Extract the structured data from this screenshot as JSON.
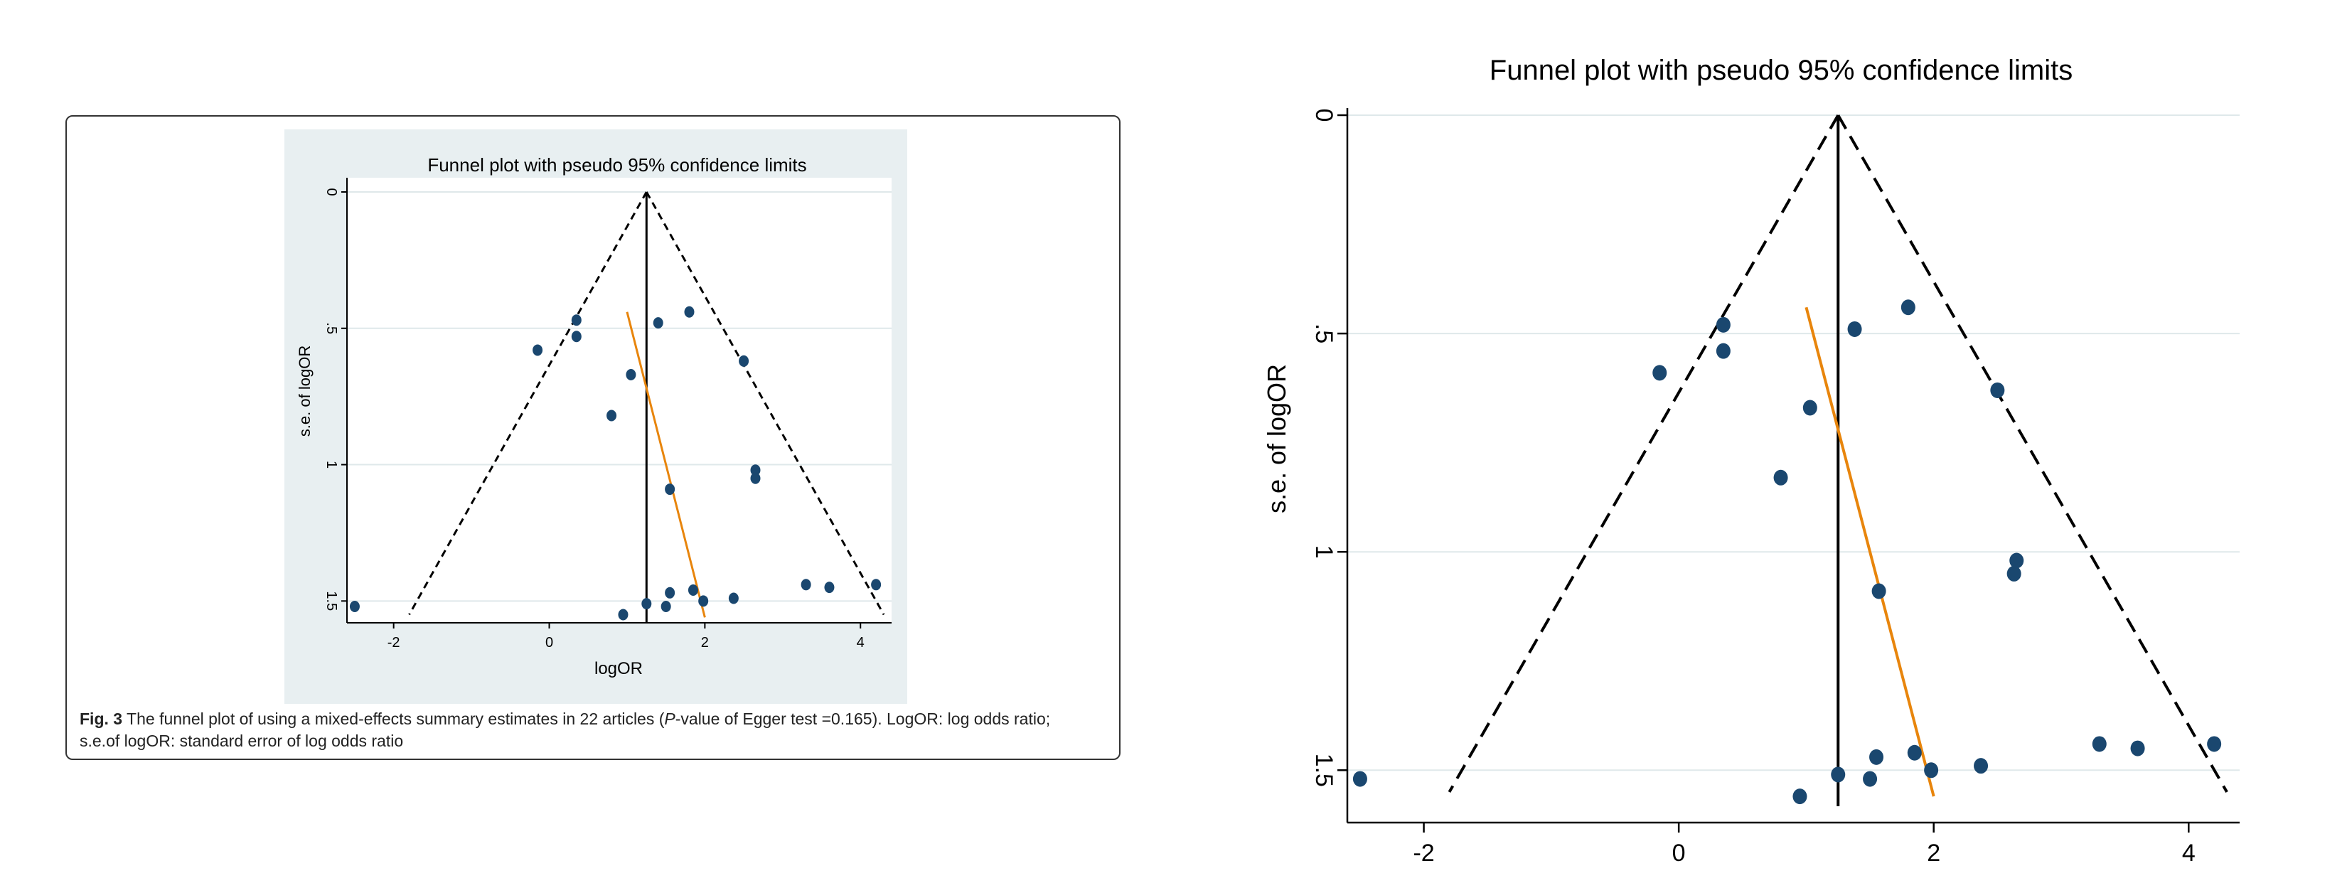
{
  "colors": {
    "panel_background": "#e8eff1",
    "plot_background": "#ffffff",
    "marker": "#1a476f",
    "regression_line": "#e8850c",
    "funnel_line": "#000000",
    "gridline": "#dfe8ea"
  },
  "figure_caption": {
    "label": "Fig. 3",
    "text_before_p": "The funnel plot of using a mixed-effects summary estimates in 22 articles (",
    "p_symbol": "P",
    "text_after_p": "-value of Egger test =0.165). LogOR: log odds ratio; s.e.of logOR: standard error of log odds ratio"
  },
  "chart_data": [
    {
      "type": "scatter",
      "title": "Funnel plot with pseudo 95% confidence limits",
      "xlabel": "logOR",
      "ylabel": "s.e. of logOR",
      "xlim": [
        -2.6,
        4.4
      ],
      "ylim": [
        0,
        1.58
      ],
      "y_reversed": true,
      "grid": true,
      "x_ticks": [
        -2,
        0,
        2,
        4
      ],
      "x_tick_labels": [
        "-2",
        "0",
        "2",
        "4"
      ],
      "y_ticks": [
        0,
        0.5,
        1,
        1.5
      ],
      "y_tick_labels": [
        "0",
        ".5",
        "1",
        "1.5"
      ],
      "pooled_estimate": 1.25,
      "pseudo_ci_lines": [
        {
          "name": "lower",
          "points": [
            [
              1.25,
              0
            ],
            [
              -1.8,
              1.55
            ]
          ]
        },
        {
          "name": "upper",
          "points": [
            [
              1.25,
              0
            ],
            [
              4.3,
              1.55
            ]
          ]
        }
      ],
      "egger_line": {
        "points": [
          [
            1.0,
            0.44
          ],
          [
            2.0,
            1.56
          ]
        ]
      },
      "points": [
        {
          "x": -2.5,
          "y": 1.52
        },
        {
          "x": -0.15,
          "y": 0.58
        },
        {
          "x": 0.35,
          "y": 0.47
        },
        {
          "x": 0.35,
          "y": 0.53
        },
        {
          "x": 1.05,
          "y": 0.67
        },
        {
          "x": 0.8,
          "y": 0.82
        },
        {
          "x": 1.4,
          "y": 0.48
        },
        {
          "x": 1.8,
          "y": 0.44
        },
        {
          "x": 2.5,
          "y": 0.62
        },
        {
          "x": 2.65,
          "y": 1.02
        },
        {
          "x": 2.65,
          "y": 1.05
        },
        {
          "x": 1.55,
          "y": 1.09
        },
        {
          "x": 0.95,
          "y": 1.55
        },
        {
          "x": 1.25,
          "y": 1.51
        },
        {
          "x": 1.5,
          "y": 1.52
        },
        {
          "x": 1.55,
          "y": 1.47
        },
        {
          "x": 1.85,
          "y": 1.46
        },
        {
          "x": 1.98,
          "y": 1.5
        },
        {
          "x": 2.37,
          "y": 1.49
        },
        {
          "x": 3.3,
          "y": 1.44
        },
        {
          "x": 3.6,
          "y": 1.45
        },
        {
          "x": 4.2,
          "y": 1.44
        }
      ]
    },
    {
      "type": "scatter",
      "title": "Funnel plot with pseudo 95% confidence limits",
      "xlabel": "",
      "ylabel": "s.e. of logOR",
      "xlim": [
        -2.6,
        4.4
      ],
      "ylim": [
        0,
        1.62
      ],
      "y_reversed": true,
      "grid": true,
      "x_ticks": [
        -2,
        0,
        2,
        4
      ],
      "x_tick_labels": [
        "-2",
        "0",
        "2",
        "4"
      ],
      "y_ticks": [
        0,
        0.5,
        1,
        1.5
      ],
      "y_tick_labels": [
        "0",
        ".5",
        "1",
        "1.5"
      ],
      "pooled_estimate": 1.25,
      "pseudo_ci_lines": [
        {
          "name": "lower",
          "points": [
            [
              1.25,
              0
            ],
            [
              -1.8,
              1.55
            ]
          ]
        },
        {
          "name": "upper",
          "points": [
            [
              1.25,
              0
            ],
            [
              4.3,
              1.55
            ]
          ]
        }
      ],
      "egger_line": {
        "points": [
          [
            1.0,
            0.44
          ],
          [
            2.0,
            1.56
          ]
        ]
      },
      "points": [
        {
          "x": -2.5,
          "y": 1.52
        },
        {
          "x": -0.15,
          "y": 0.59
        },
        {
          "x": 0.35,
          "y": 0.48
        },
        {
          "x": 0.35,
          "y": 0.54
        },
        {
          "x": 1.03,
          "y": 0.67
        },
        {
          "x": 0.8,
          "y": 0.83
        },
        {
          "x": 1.38,
          "y": 0.49
        },
        {
          "x": 1.8,
          "y": 0.44
        },
        {
          "x": 2.5,
          "y": 0.63
        },
        {
          "x": 2.65,
          "y": 1.02
        },
        {
          "x": 2.63,
          "y": 1.05
        },
        {
          "x": 1.57,
          "y": 1.09
        },
        {
          "x": 0.95,
          "y": 1.56
        },
        {
          "x": 1.25,
          "y": 1.51
        },
        {
          "x": 1.5,
          "y": 1.52
        },
        {
          "x": 1.55,
          "y": 1.47
        },
        {
          "x": 1.85,
          "y": 1.46
        },
        {
          "x": 1.98,
          "y": 1.5
        },
        {
          "x": 2.37,
          "y": 1.49
        },
        {
          "x": 3.3,
          "y": 1.44
        },
        {
          "x": 3.6,
          "y": 1.45
        },
        {
          "x": 4.2,
          "y": 1.44
        }
      ]
    }
  ]
}
